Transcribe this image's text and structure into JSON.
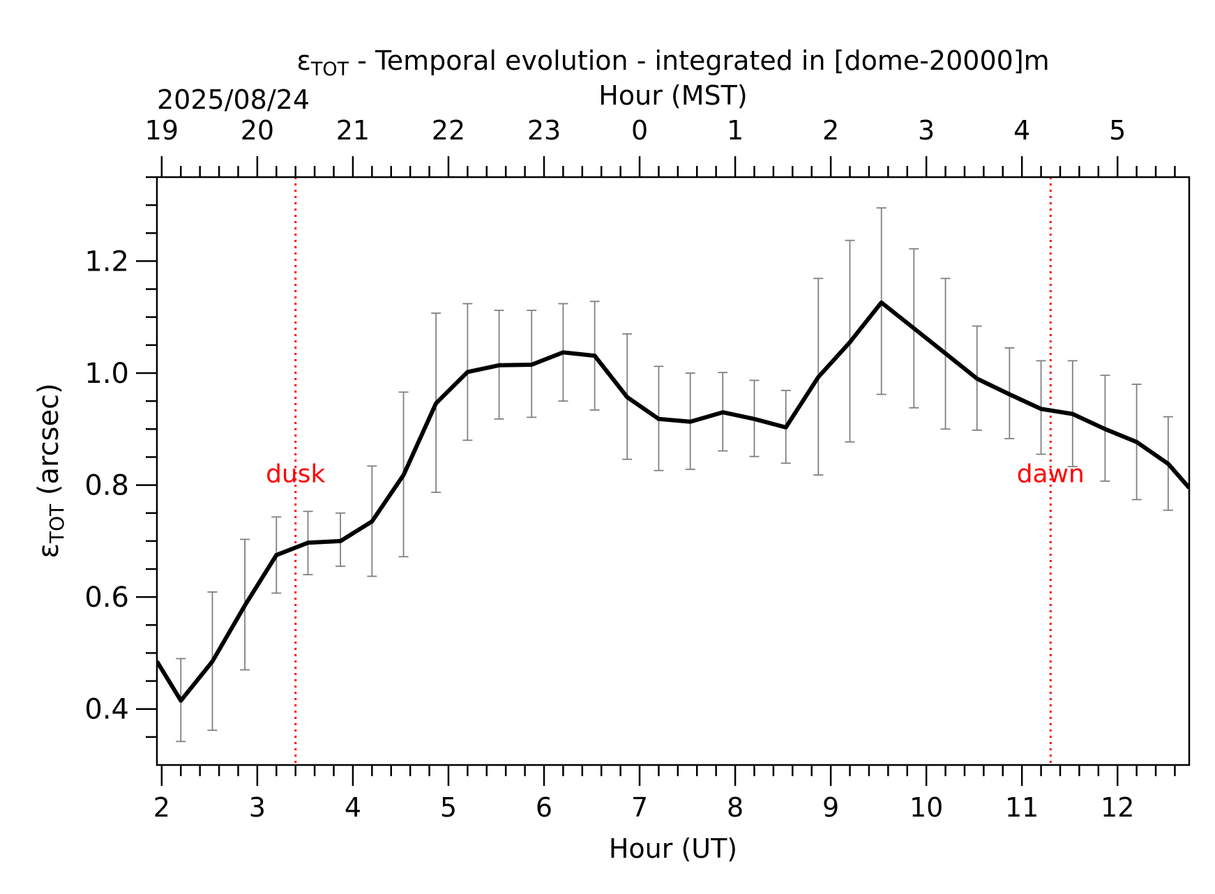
{
  "chart_data": {
    "type": "line",
    "title_symbol": "ε",
    "title_symbol_sub": "TOT",
    "title_rest": " - Temporal evolution - integrated in [dome-20000]m",
    "date_label": "2025/08/24",
    "top_axis_label": "Hour (MST)",
    "xlabel": "Hour (UT)",
    "ylabel_symbol": "ε",
    "ylabel_sub": "TOT",
    "ylabel_rest": " (arcsec)",
    "xlim": [
      1.95,
      12.75
    ],
    "ylim": [
      0.3,
      1.35
    ],
    "x_ticks": [
      2,
      3,
      4,
      5,
      6,
      7,
      8,
      9,
      10,
      11,
      12
    ],
    "x_tick_labels": [
      "2",
      "3",
      "4",
      "5",
      "6",
      "7",
      "8",
      "9",
      "10",
      "11",
      "12"
    ],
    "x_minor_step": 0.2,
    "top_ticks_ut": [
      2,
      3,
      4,
      5,
      6,
      7,
      8,
      9,
      10,
      11,
      12
    ],
    "top_tick_labels": [
      "19",
      "20",
      "21",
      "22",
      "23",
      "0",
      "1",
      "2",
      "3",
      "4",
      "5"
    ],
    "y_ticks": [
      0.4,
      0.6,
      0.8,
      1.0,
      1.2
    ],
    "y_tick_labels": [
      "0.4",
      "0.6",
      "0.8",
      "1.0",
      "1.2"
    ],
    "y_minor_step": 0.05,
    "series": [
      {
        "x": [
          1.95,
          2.2,
          2.53,
          2.87,
          3.2,
          3.53,
          3.87,
          4.2,
          4.53,
          4.87,
          5.2,
          5.53,
          5.87,
          6.2,
          6.53,
          6.87,
          7.2,
          7.53,
          7.87,
          8.2,
          8.53,
          8.87,
          9.2,
          9.53,
          9.87,
          10.2,
          10.53,
          10.87,
          11.2,
          11.53,
          11.87,
          12.2,
          12.53,
          12.75
        ],
        "y": [
          0.485,
          0.415,
          0.485,
          0.585,
          0.675,
          0.697,
          0.7,
          0.735,
          0.818,
          0.946,
          1.002,
          1.014,
          1.015,
          1.037,
          1.031,
          0.957,
          0.918,
          0.913,
          0.93,
          0.918,
          0.903,
          0.993,
          1.055,
          1.126,
          1.08,
          1.035,
          0.99,
          0.962,
          0.936,
          0.927,
          0.9,
          0.877,
          0.838,
          0.795
        ],
        "err_low": [
          null,
          0.342,
          0.362,
          0.47,
          0.607,
          0.64,
          0.655,
          0.637,
          0.672,
          0.787,
          0.88,
          0.918,
          0.921,
          0.95,
          0.934,
          0.846,
          0.826,
          0.828,
          0.861,
          0.851,
          0.839,
          0.818,
          0.877,
          0.962,
          0.938,
          0.9,
          0.898,
          0.883,
          0.855,
          0.833,
          0.807,
          0.774,
          0.755,
          null
        ],
        "err_high": [
          null,
          0.49,
          0.609,
          0.703,
          0.743,
          0.753,
          0.75,
          0.834,
          0.966,
          1.107,
          1.124,
          1.112,
          1.112,
          1.124,
          1.128,
          1.07,
          1.012,
          1.0,
          1.001,
          0.987,
          0.969,
          1.169,
          1.237,
          1.295,
          1.222,
          1.169,
          1.084,
          1.045,
          1.022,
          1.022,
          0.996,
          0.98,
          0.922,
          null
        ]
      }
    ],
    "annotations": [
      {
        "label": "dusk",
        "x": 3.4,
        "label_y": 0.82
      },
      {
        "label": "dawn",
        "x": 11.3,
        "label_y": 0.82
      }
    ],
    "colors": {
      "line": "#000000",
      "error_bar": "#808080",
      "marker_line": "#ff0000",
      "marker_text": "#ff0000"
    },
    "grid": false
  }
}
